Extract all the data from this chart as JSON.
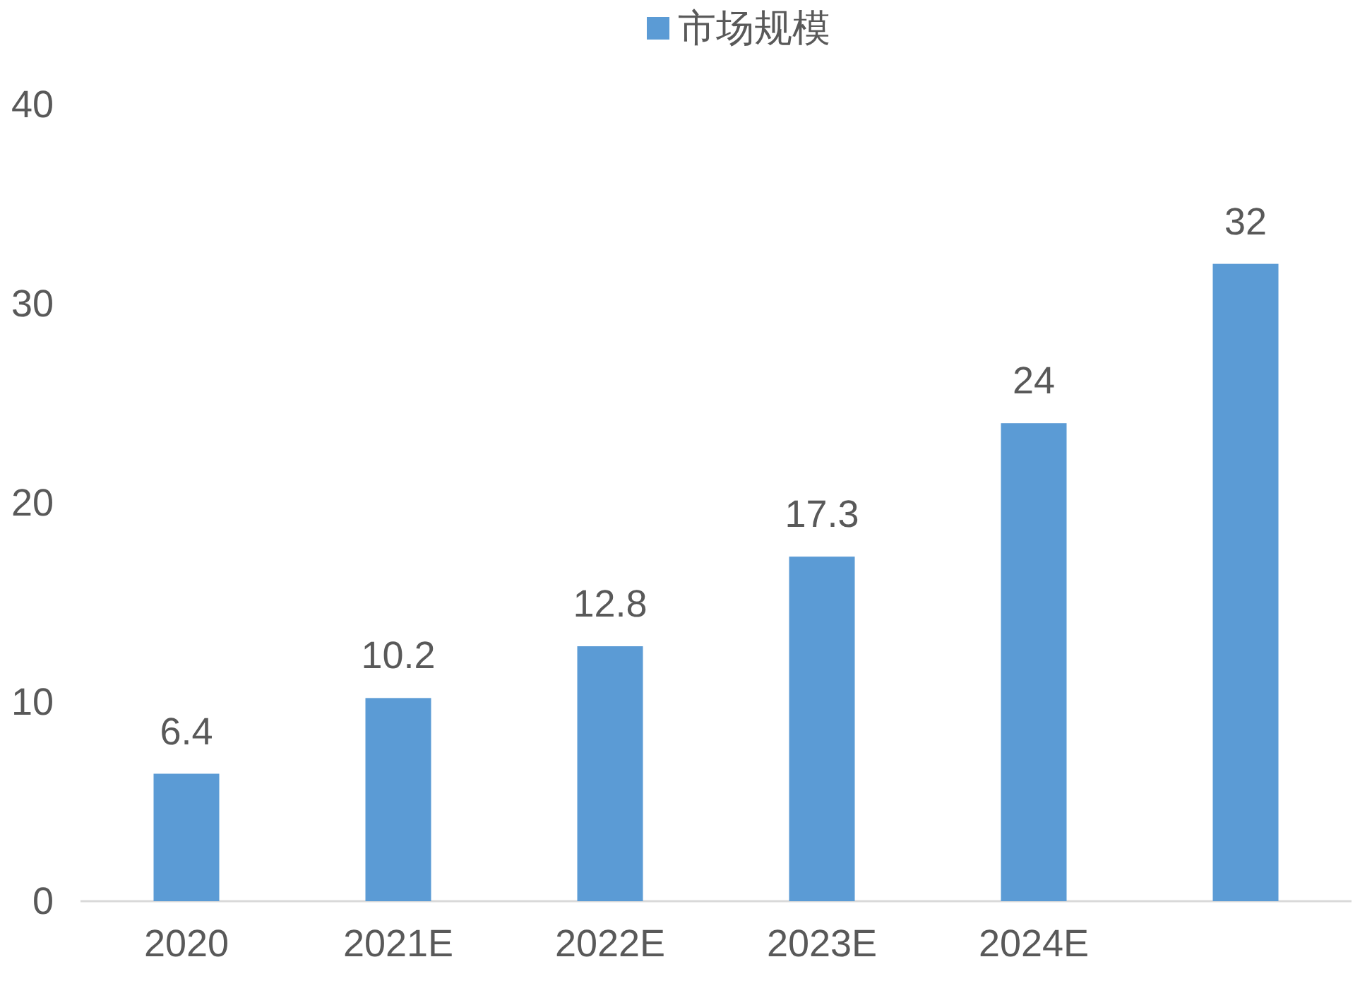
{
  "chart_data": {
    "type": "bar",
    "categories": [
      "2020",
      "2021E",
      "2022E",
      "2023E",
      "2024E",
      null
    ],
    "series": [
      {
        "name": "市场规模",
        "color": "#5b9bd5",
        "values": [
          6.4,
          10.2,
          12.8,
          17.3,
          24,
          32
        ]
      }
    ],
    "ylim": [
      0,
      40
    ],
    "yticks": [
      0,
      10,
      20,
      30,
      40
    ],
    "data_labels": true,
    "legend": "top"
  }
}
